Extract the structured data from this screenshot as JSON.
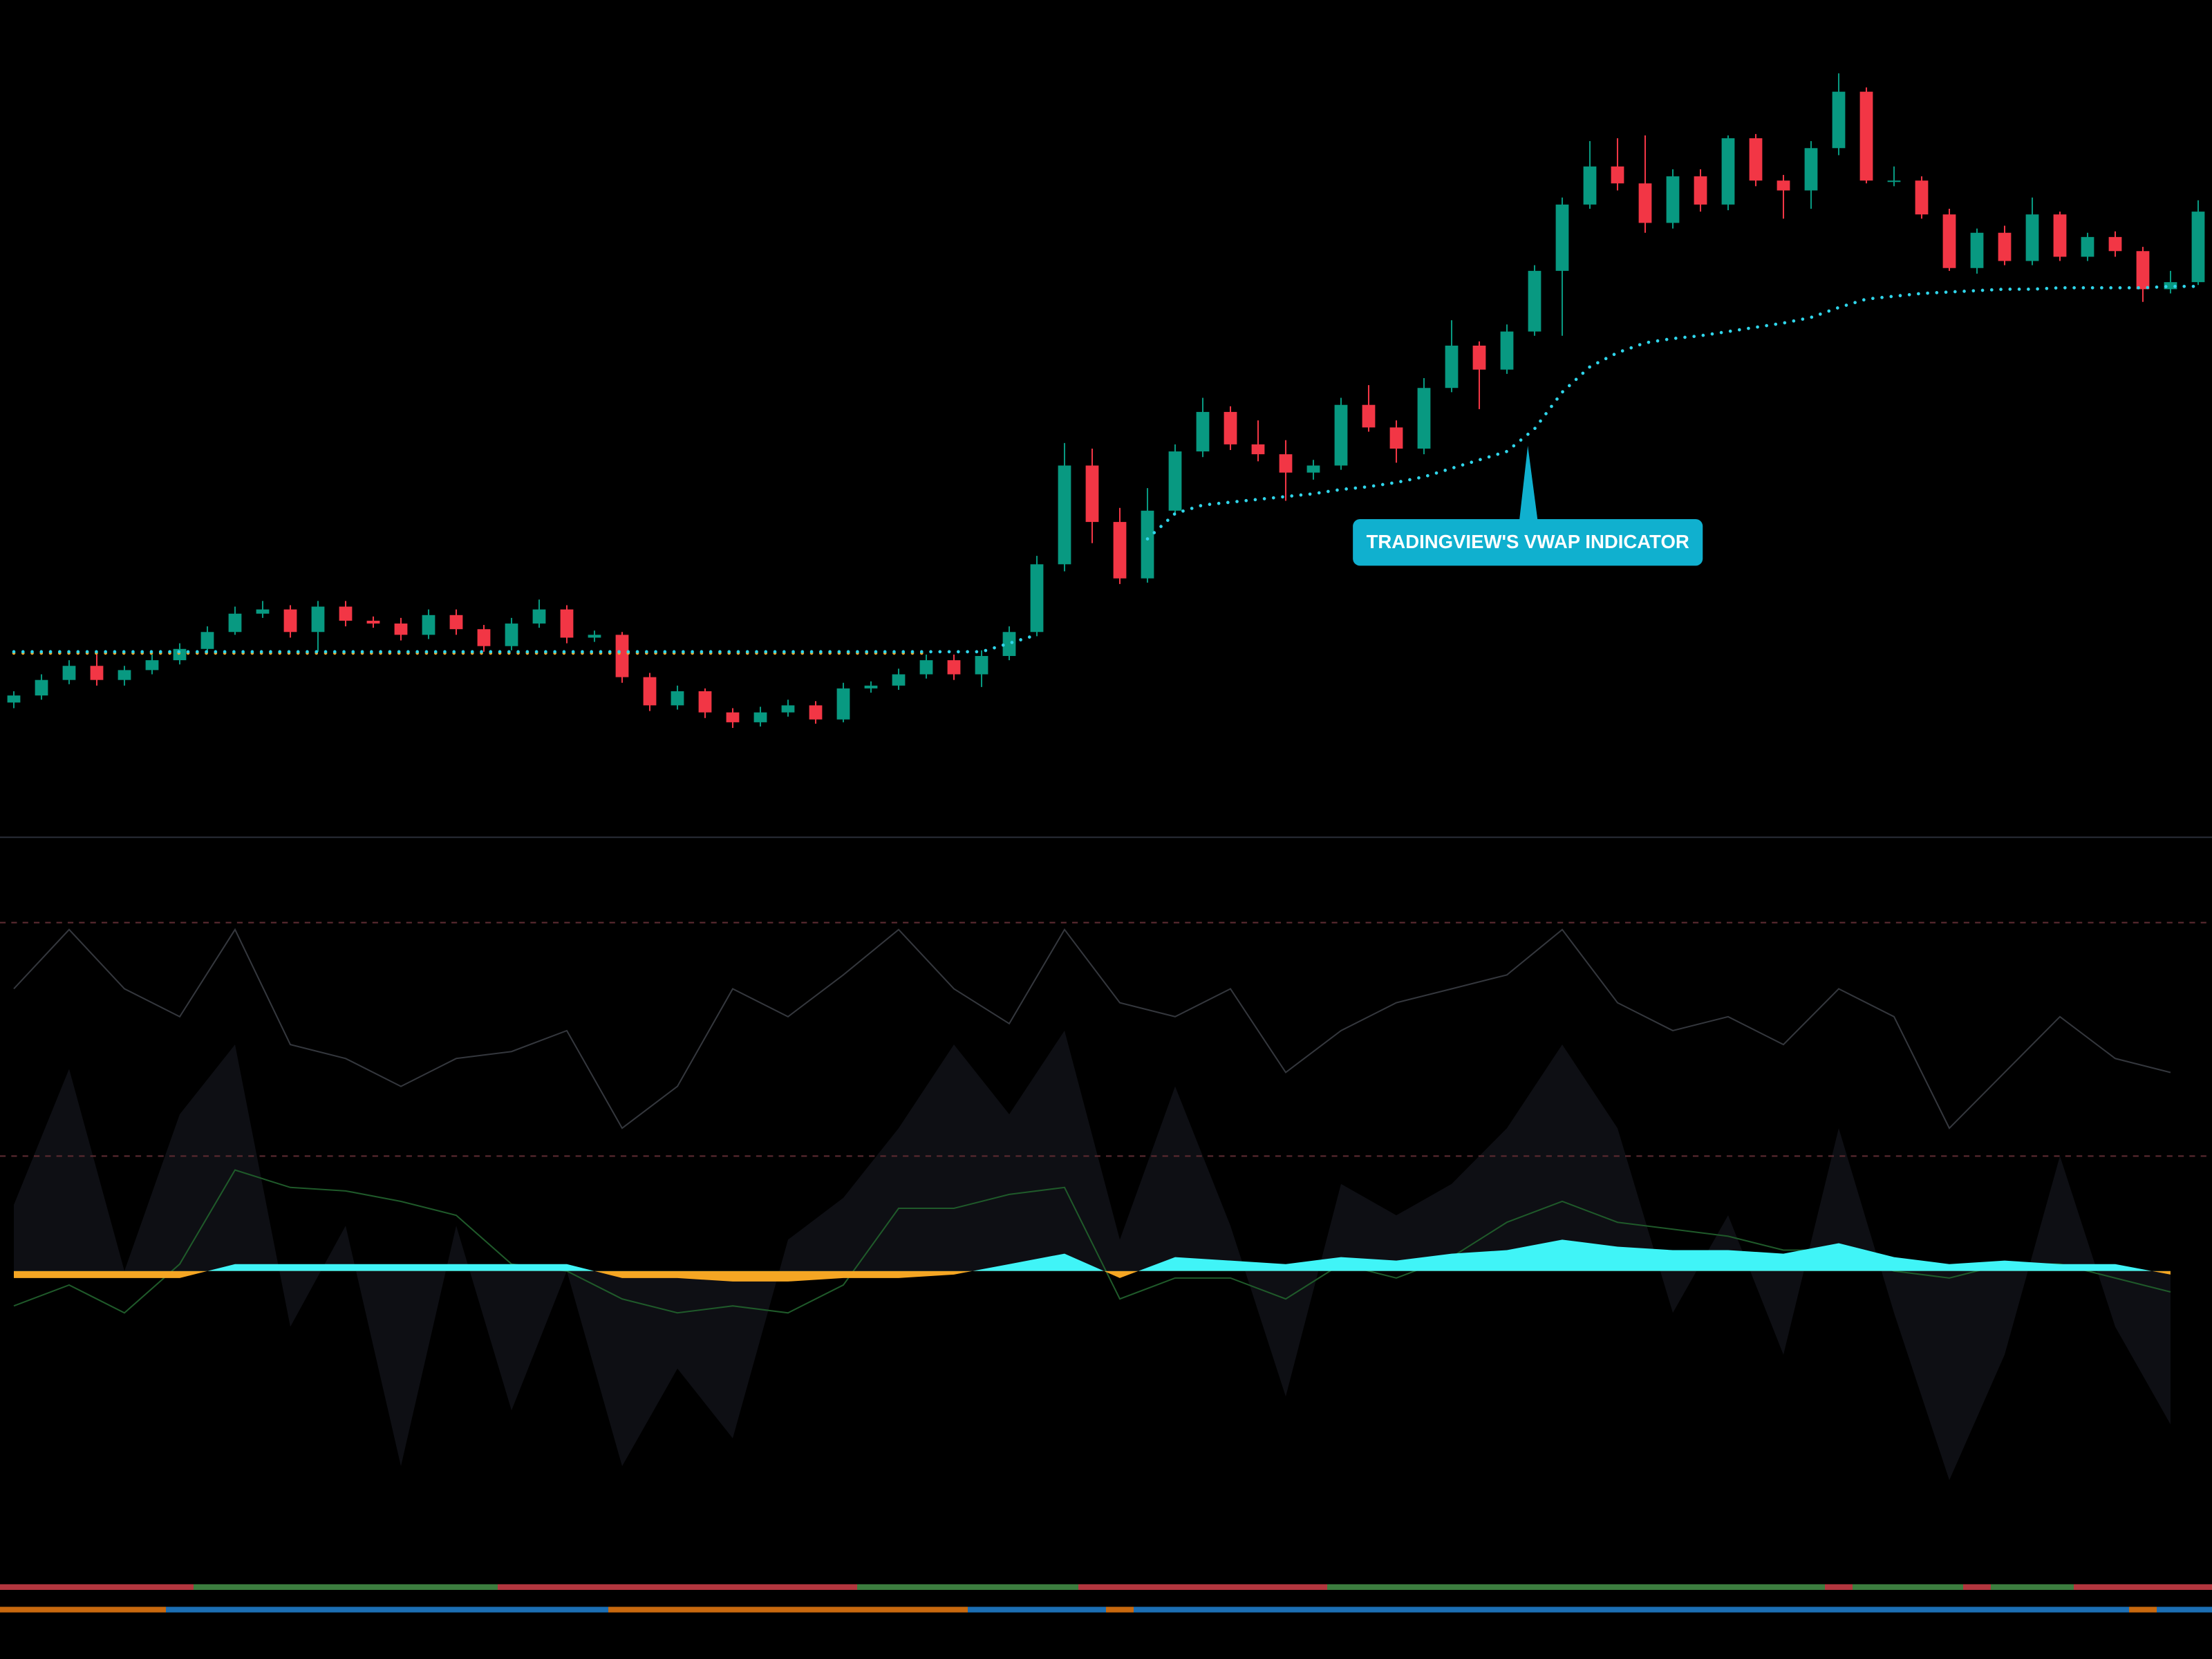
{
  "chart_data": [
    {
      "type": "candlestick",
      "up_color": "#089981",
      "down_color": "#f23645",
      "ylim": [
        0,
        590
      ],
      "candles": [
        [
          92,
          100,
          88,
          97
        ],
        [
          97,
          112,
          94,
          108
        ],
        [
          108,
          122,
          105,
          118
        ],
        [
          118,
          126,
          104,
          108
        ],
        [
          108,
          118,
          104,
          115
        ],
        [
          115,
          126,
          112,
          122
        ],
        [
          122,
          134,
          119,
          130
        ],
        [
          130,
          146,
          127,
          142
        ],
        [
          142,
          160,
          140,
          155
        ],
        [
          155,
          164,
          152,
          158
        ],
        [
          158,
          161,
          138,
          142
        ],
        [
          142,
          164,
          128,
          160
        ],
        [
          160,
          164,
          146,
          150
        ],
        [
          150,
          153,
          145,
          148
        ],
        [
          148,
          152,
          136,
          140
        ],
        [
          140,
          158,
          137,
          154
        ],
        [
          154,
          158,
          140,
          144
        ],
        [
          144,
          147,
          128,
          132
        ],
        [
          132,
          152,
          129,
          148
        ],
        [
          148,
          165,
          145,
          158
        ],
        [
          158,
          161,
          134,
          138
        ],
        [
          138,
          143,
          135,
          140
        ],
        [
          140,
          142,
          106,
          110
        ],
        [
          110,
          113,
          86,
          90
        ],
        [
          90,
          104,
          87,
          100
        ],
        [
          100,
          102,
          81,
          85
        ],
        [
          85,
          88,
          74,
          78
        ],
        [
          78,
          89,
          75,
          85
        ],
        [
          85,
          94,
          82,
          90
        ],
        [
          90,
          93,
          77,
          80
        ],
        [
          80,
          106,
          78,
          102
        ],
        [
          102,
          107,
          99,
          104
        ],
        [
          104,
          116,
          101,
          112
        ],
        [
          112,
          126,
          109,
          122
        ],
        [
          122,
          126,
          108,
          112
        ],
        [
          112,
          129,
          103,
          125
        ],
        [
          125,
          146,
          122,
          142
        ],
        [
          142,
          196,
          139,
          190
        ],
        [
          190,
          276,
          185,
          260
        ],
        [
          260,
          272,
          205,
          220
        ],
        [
          220,
          230,
          176,
          180
        ],
        [
          180,
          244,
          177,
          228
        ],
        [
          228,
          275,
          225,
          270
        ],
        [
          270,
          308,
          266,
          298
        ],
        [
          298,
          302,
          271,
          275
        ],
        [
          275,
          292,
          263,
          268
        ],
        [
          268,
          278,
          235,
          255
        ],
        [
          255,
          264,
          250,
          260
        ],
        [
          260,
          308,
          257,
          303
        ],
        [
          303,
          317,
          284,
          287
        ],
        [
          287,
          292,
          262,
          272
        ],
        [
          272,
          322,
          268,
          315
        ],
        [
          315,
          363,
          312,
          345
        ],
        [
          345,
          348,
          300,
          328
        ],
        [
          328,
          360,
          325,
          355
        ],
        [
          355,
          402,
          352,
          398
        ],
        [
          398,
          450,
          352,
          445
        ],
        [
          445,
          490,
          442,
          472
        ],
        [
          472,
          492,
          455,
          460
        ],
        [
          460,
          494,
          425,
          432
        ],
        [
          432,
          470,
          428,
          465
        ],
        [
          465,
          470,
          440,
          445
        ],
        [
          445,
          494,
          441,
          492
        ],
        [
          492,
          495,
          458,
          462
        ],
        [
          462,
          466,
          435,
          455
        ],
        [
          455,
          490,
          442,
          485
        ],
        [
          485,
          538,
          480,
          525
        ],
        [
          525,
          528,
          460,
          462
        ],
        [
          462,
          472,
          458,
          462
        ],
        [
          462,
          465,
          435,
          438
        ],
        [
          438,
          442,
          398,
          400
        ],
        [
          400,
          428,
          396,
          425
        ],
        [
          425,
          430,
          402,
          405
        ],
        [
          405,
          450,
          402,
          438
        ],
        [
          438,
          440,
          405,
          408
        ],
        [
          408,
          425,
          405,
          422
        ],
        [
          422,
          426,
          408,
          412
        ],
        [
          412,
          415,
          376,
          385
        ],
        [
          385,
          398,
          382,
          390
        ],
        [
          390,
          448,
          388,
          440
        ]
      ],
      "overlays": [
        {
          "color": "#f5a623",
          "values": [
            127,
            127,
            127,
            127,
            127,
            127,
            127,
            127,
            127,
            127,
            127,
            127,
            127,
            127,
            127,
            127,
            127,
            127,
            127,
            127,
            127,
            127,
            127,
            127,
            127,
            127,
            127,
            127,
            127,
            127,
            127,
            127,
            127,
            127,
            null,
            null,
            null,
            null,
            null,
            null,
            null,
            null,
            null,
            null,
            null,
            null,
            null,
            null,
            null,
            null,
            null,
            null,
            null,
            null,
            null,
            null,
            null,
            null,
            null,
            null,
            null,
            null,
            null,
            null,
            null,
            null,
            null,
            null,
            null,
            null,
            null,
            null,
            null,
            null,
            null,
            null,
            null,
            null,
            null,
            null
          ]
        },
        {
          "color": "#2fd5ea",
          "values": [
            128,
            128,
            128,
            128,
            128,
            128,
            128,
            128,
            128,
            128,
            128,
            128,
            128,
            128,
            128,
            128,
            128,
            128,
            128,
            128,
            128,
            128,
            128,
            128,
            128,
            128,
            128,
            128,
            128,
            128,
            128,
            128,
            128,
            128,
            128,
            128,
            134,
            140,
            null,
            null,
            null,
            208,
            226,
            232,
            234,
            236,
            238,
            240,
            243,
            245,
            248,
            252,
            258,
            264,
            270,
            286,
            312,
            330,
            340,
            347,
            350,
            352,
            355,
            358,
            361,
            365,
            372,
            378,
            380,
            382,
            383,
            384,
            385,
            385,
            386,
            386,
            386,
            386,
            387,
            387
          ]
        }
      ],
      "annotation": "TRADINGVIEW'S VWAP INDICATOR"
    },
    {
      "type": "oscillator",
      "ylim": [
        -80,
        100
      ],
      "levels": [
        100,
        33
      ],
      "level_color": "#5a2a30",
      "x": [
        0,
        2,
        4,
        6,
        8,
        10,
        12,
        14,
        16,
        18,
        20,
        22,
        24,
        26,
        28,
        30,
        32,
        34,
        36,
        38,
        40,
        42,
        44,
        46,
        48,
        50,
        52,
        54,
        56,
        58,
        60,
        62,
        64,
        66,
        68,
        70,
        72,
        74,
        76,
        78
      ],
      "area": {
        "color": "#0e0f14",
        "values": [
          19,
          58,
          0,
          45,
          65,
          -16,
          13,
          -56,
          13,
          -40,
          0,
          -56,
          -28,
          -48,
          9,
          21,
          41,
          65,
          45,
          69,
          9,
          53,
          13,
          -36,
          25,
          16,
          25,
          41,
          65,
          41,
          -12,
          16,
          -24,
          41,
          -12,
          -60,
          -24,
          33,
          -16,
          -44
        ]
      },
      "histogram": {
        "pos_color": "#40f4f7",
        "neg_color": "#f5a623",
        "values": [
          -2,
          -2,
          -2,
          -2,
          2,
          2,
          2,
          2,
          2,
          2,
          2,
          -2,
          -2,
          -3,
          -3,
          -2,
          -2,
          -1,
          2,
          5,
          -2,
          4,
          3,
          2,
          4,
          3,
          5,
          6,
          9,
          7,
          6,
          6,
          5,
          8,
          4,
          2,
          3,
          2,
          2,
          -1
        ]
      },
      "lines": [
        {
          "color": "#34373d",
          "values": [
            81,
            98,
            81,
            73,
            98,
            65,
            61,
            53,
            61,
            63,
            69,
            41,
            53,
            81,
            73,
            85,
            98,
            81,
            71,
            98,
            77,
            73,
            81,
            57,
            69,
            77,
            81,
            85,
            98,
            77,
            69,
            73,
            65,
            81,
            73,
            41,
            57,
            73,
            61,
            57
          ]
        },
        {
          "color": "#1f5a2a",
          "values": [
            -10,
            -4,
            -12,
            2,
            29,
            24,
            23,
            20,
            16,
            2,
            0,
            -8,
            -12,
            -10,
            -12,
            -4,
            18,
            18,
            22,
            24,
            -8,
            -2,
            -2,
            -8,
            2,
            -2,
            4,
            14,
            20,
            14,
            12,
            10,
            6,
            6,
            0,
            -2,
            2,
            2,
            -2,
            -6
          ]
        }
      ]
    },
    {
      "type": "strip",
      "rows": [
        {
          "segments": [
            {
              "color": "#b2363e",
              "length": 7
            },
            {
              "color": "#3c7d3f",
              "length": 11
            },
            {
              "color": "#b2363e",
              "length": 13
            },
            {
              "color": "#3c7d3f",
              "length": 8
            },
            {
              "color": "#b2363e",
              "length": 9
            },
            {
              "color": "#3c7d3f",
              "length": 18
            },
            {
              "color": "#b2363e",
              "length": 1
            },
            {
              "color": "#3c7d3f",
              "length": 4
            },
            {
              "color": "#b2363e",
              "length": 1
            },
            {
              "color": "#3c7d3f",
              "length": 3
            },
            {
              "color": "#b2363e",
              "length": 5
            }
          ]
        },
        {
          "segments": [
            {
              "color": "#c8690f",
              "length": 6
            },
            {
              "color": "#1c6fb4",
              "length": 16
            },
            {
              "color": "#c8690f",
              "length": 13
            },
            {
              "color": "#1c6fb4",
              "length": 5
            },
            {
              "color": "#c8690f",
              "length": 1
            },
            {
              "color": "#1c6fb4",
              "length": 36
            },
            {
              "color": "#c8690f",
              "length": 1
            },
            {
              "color": "#1c6fb4",
              "length": 2
            }
          ]
        }
      ]
    }
  ]
}
